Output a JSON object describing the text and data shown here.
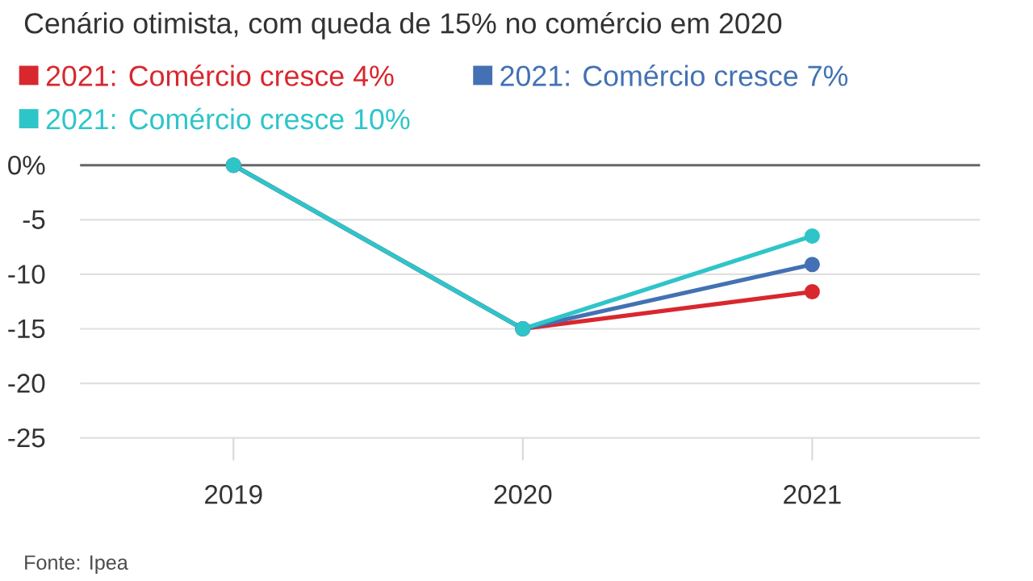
{
  "chart_data": {
    "type": "line",
    "title": "Cenário otimista, com queda de 15% no comércio em 2020",
    "categories": [
      "2019",
      "2020",
      "2021"
    ],
    "series": [
      {
        "name": "2021: Comércio cresce 4%",
        "color": "#d9272e",
        "values": [
          0,
          -15,
          -11.6
        ]
      },
      {
        "name": "2021: Comércio cresce 7%",
        "color": "#4371b3",
        "values": [
          0,
          -15,
          -9.1
        ]
      },
      {
        "name": "2021: Comércio cresce 10%",
        "color": "#2ec5c9",
        "values": [
          0,
          -15,
          -6.5
        ]
      }
    ],
    "ylim": [
      -25,
      0
    ],
    "yticks": [
      {
        "value": 0,
        "label": "0%"
      },
      -5,
      -10,
      -15,
      -20,
      -25
    ],
    "grid": "y",
    "legend": "top",
    "marker": "circle",
    "line_style": "solid",
    "ref_lines": [
      {
        "axis": "y",
        "value": 0,
        "color": "#666666"
      }
    ],
    "annotations": [
      "Fonte: Ipea"
    ]
  }
}
